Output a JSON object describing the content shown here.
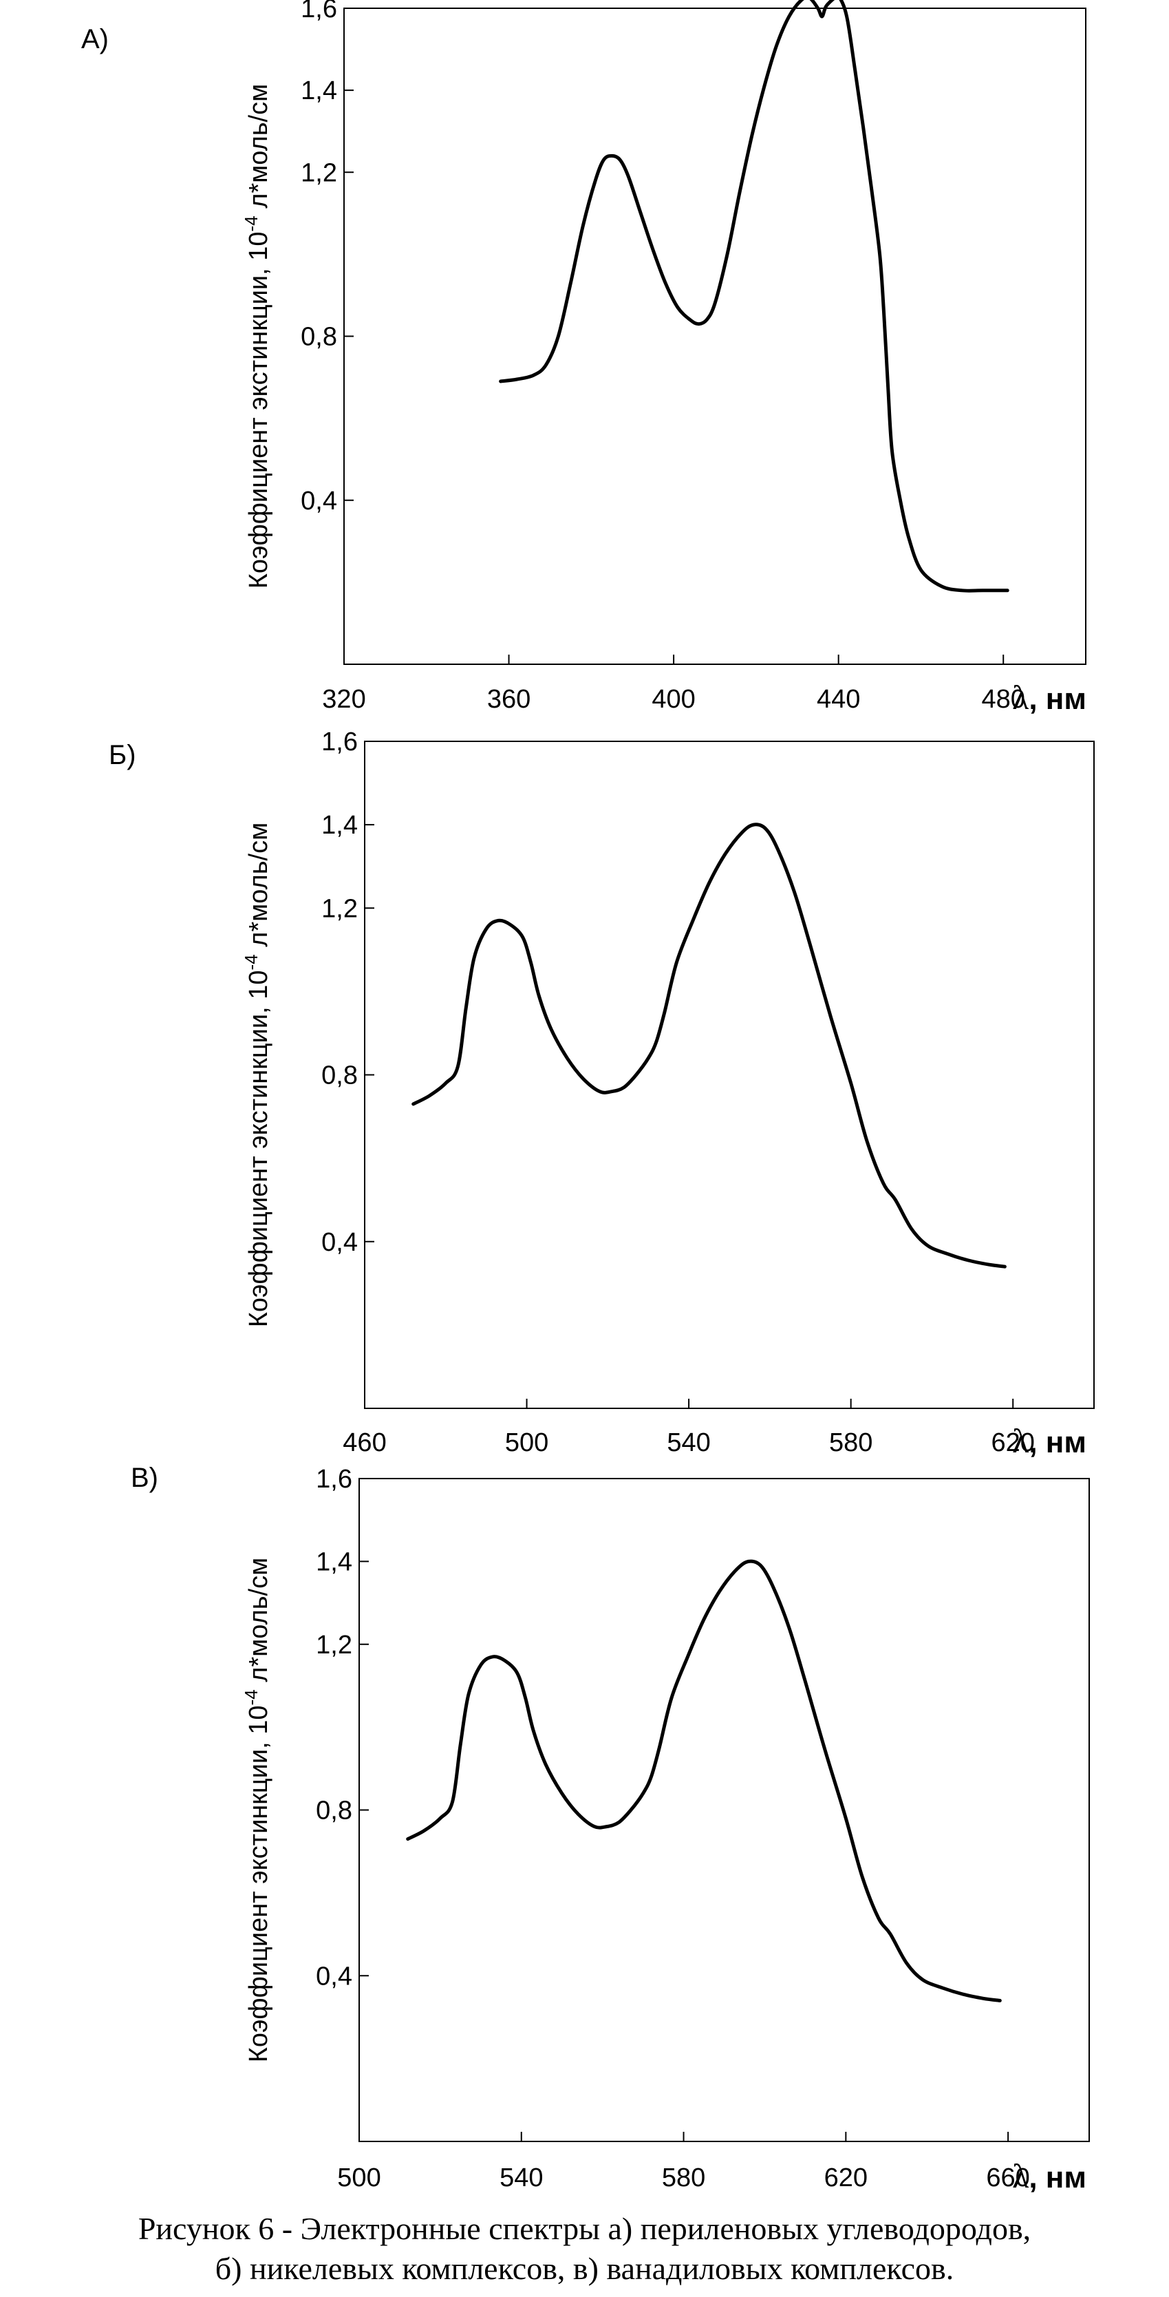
{
  "chart_data": [
    {
      "type": "line",
      "panel_label": "А)",
      "ylabel_main": "Коэффициент экстинкции, 10",
      "ylabel_sup": "-4",
      "ylabel_tail": " л*моль/см",
      "xlabel_symbol": "λ",
      "xlabel_unit": ", нм",
      "xlim": [
        320,
        500
      ],
      "ylim": [
        0,
        1.6
      ],
      "xticks": [
        320,
        360,
        400,
        440,
        480
      ],
      "xtick_labels": [
        "320",
        "360",
        "400",
        "440",
        "480"
      ],
      "yticks": [
        0.4,
        0.8,
        1.2,
        1.4,
        1.6
      ],
      "ytick_labels": [
        "0,4",
        "0,8",
        "1,2",
        "1,4",
        "1,6"
      ],
      "grid": false,
      "series": [
        {
          "x": [
            358,
            362,
            366,
            369,
            372,
            375,
            378,
            381,
            383,
            385,
            387,
            389,
            392,
            395,
            398,
            401,
            404,
            406,
            408,
            410,
            413,
            416,
            419,
            422,
            425,
            428,
            431,
            433,
            435,
            436,
            437,
            439,
            440,
            442,
            444,
            446,
            448,
            450,
            451,
            452,
            453,
            455,
            457,
            460,
            465,
            470,
            475,
            481
          ],
          "y": [
            0.69,
            0.695,
            0.705,
            0.73,
            0.8,
            0.93,
            1.07,
            1.18,
            1.23,
            1.24,
            1.23,
            1.19,
            1.1,
            1.01,
            0.93,
            0.87,
            0.84,
            0.83,
            0.84,
            0.88,
            1.0,
            1.15,
            1.29,
            1.41,
            1.51,
            1.58,
            1.62,
            1.625,
            1.6,
            1.58,
            1.605,
            1.625,
            1.63,
            1.58,
            1.45,
            1.31,
            1.16,
            1.0,
            0.86,
            0.68,
            0.52,
            0.4,
            0.31,
            0.23,
            0.19,
            0.18,
            0.18,
            0.18
          ]
        }
      ]
    },
    {
      "type": "line",
      "panel_label": "Б)",
      "ylabel_main": "Коэффициент экстинкции, 10",
      "ylabel_sup": "-4",
      "ylabel_tail": " л*моль/см",
      "xlabel_symbol": "λ",
      "xlabel_unit": ", нм",
      "xlim": [
        460,
        640
      ],
      "ylim": [
        0,
        1.6
      ],
      "xticks": [
        460,
        500,
        540,
        580,
        620
      ],
      "xtick_labels": [
        "460",
        "500",
        "540",
        "580",
        "620"
      ],
      "yticks": [
        0.4,
        0.8,
        1.2,
        1.4,
        1.6
      ],
      "ytick_labels": [
        "0,4",
        "0,8",
        "1,2",
        "1,4",
        "1,6"
      ],
      "grid": false,
      "series": [
        {
          "x": [
            472,
            476,
            480,
            483,
            485,
            487,
            490,
            493,
            496,
            499,
            501,
            503,
            506,
            510,
            514,
            518,
            521,
            524,
            527,
            530,
            532,
            534,
            537,
            541,
            545,
            549,
            553,
            556,
            559,
            562,
            566,
            570,
            575,
            580,
            584,
            588,
            591,
            595,
            599,
            604,
            609,
            614,
            618
          ],
          "y": [
            0.73,
            0.75,
            0.78,
            0.82,
            0.96,
            1.08,
            1.15,
            1.17,
            1.16,
            1.13,
            1.07,
            0.99,
            0.91,
            0.84,
            0.79,
            0.76,
            0.76,
            0.77,
            0.8,
            0.84,
            0.88,
            0.95,
            1.07,
            1.17,
            1.26,
            1.33,
            1.38,
            1.4,
            1.39,
            1.34,
            1.24,
            1.11,
            0.94,
            0.78,
            0.64,
            0.54,
            0.5,
            0.43,
            0.39,
            0.37,
            0.355,
            0.345,
            0.34
          ]
        }
      ]
    },
    {
      "type": "line",
      "panel_label": "В)",
      "ylabel_main": "Коэффициент экстинкции, 10",
      "ylabel_sup": "-4",
      "ylabel_tail": " л*моль/см",
      "xlabel_symbol": "λ",
      "xlabel_unit": ", нм",
      "xlim": [
        500,
        680
      ],
      "ylim": [
        0,
        1.6
      ],
      "xticks": [
        500,
        540,
        580,
        620,
        660
      ],
      "xtick_labels": [
        "500",
        "540",
        "580",
        "620",
        "660"
      ],
      "yticks": [
        0.4,
        0.8,
        1.2,
        1.4,
        1.6
      ],
      "ytick_labels": [
        "0,4",
        "0,8",
        "1,2",
        "1,4",
        "1,6"
      ],
      "grid": false,
      "series": [
        {
          "x": [
            512,
            516,
            520,
            523,
            525,
            527,
            530,
            533,
            536,
            539,
            541,
            543,
            546,
            550,
            554,
            558,
            561,
            564,
            567,
            570,
            572,
            574,
            577,
            581,
            585,
            589,
            593,
            596,
            599,
            602,
            606,
            610,
            615,
            620,
            624,
            628,
            631,
            635,
            639,
            644,
            649,
            654,
            658
          ],
          "y": [
            0.73,
            0.75,
            0.78,
            0.82,
            0.96,
            1.08,
            1.15,
            1.17,
            1.16,
            1.13,
            1.07,
            0.99,
            0.91,
            0.84,
            0.79,
            0.76,
            0.76,
            0.77,
            0.8,
            0.84,
            0.88,
            0.95,
            1.07,
            1.17,
            1.26,
            1.33,
            1.38,
            1.4,
            1.39,
            1.34,
            1.24,
            1.11,
            0.94,
            0.78,
            0.64,
            0.54,
            0.5,
            0.43,
            0.39,
            0.37,
            0.355,
            0.345,
            0.34
          ]
        }
      ]
    }
  ],
  "caption": {
    "line1": "Рисунок 6 -  Электронные спектры а) периленовых углеводородов,",
    "line2": "б) никелевых комплексов, в) ванадиловых комплексов."
  }
}
